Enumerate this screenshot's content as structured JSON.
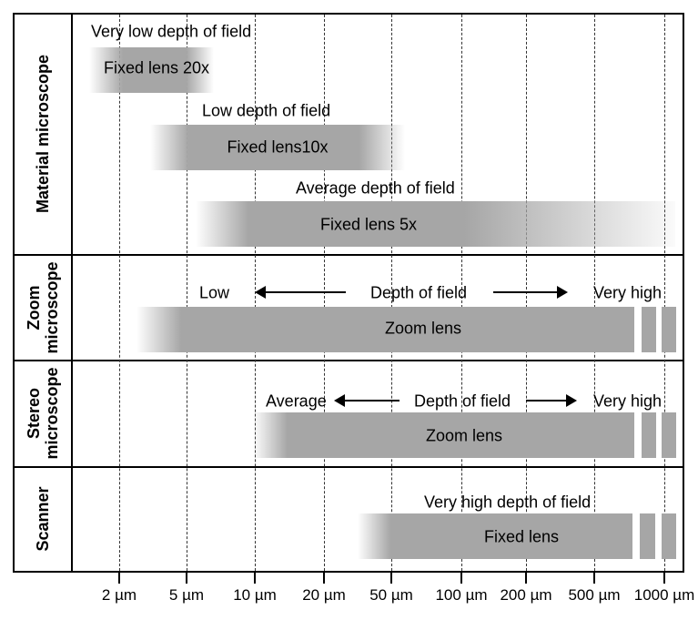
{
  "colors": {
    "bar": "#a6a6a6",
    "frame": "#000000",
    "grid": "#333333"
  },
  "axis": {
    "ticks": [
      "2 µm",
      "5 µm",
      "10 µm",
      "20 µm",
      "50 µm",
      "100 µm",
      "200 µm",
      "500 µm",
      "1000 µm"
    ]
  },
  "rows": [
    {
      "label": "Material microscope"
    },
    {
      "label": "Zoom microscope"
    },
    {
      "label": "Stereo microscope"
    },
    {
      "label": "Scanner"
    }
  ],
  "bars": [
    {
      "label": "Fixed lens 20x",
      "note": "Very low depth of field"
    },
    {
      "label": "Fixed lens10x",
      "note": "Low depth of field"
    },
    {
      "label": "Fixed lens 5x",
      "note": "Average depth of field"
    },
    {
      "label": "Zoom lens",
      "left": "Low",
      "center": "Depth of field",
      "right": "Very high"
    },
    {
      "label": "Zoom lens",
      "left": "Average",
      "center": "Depth of field",
      "right": "Very high"
    },
    {
      "label": "Fixed lens",
      "note": "Very high depth of field"
    }
  ]
}
